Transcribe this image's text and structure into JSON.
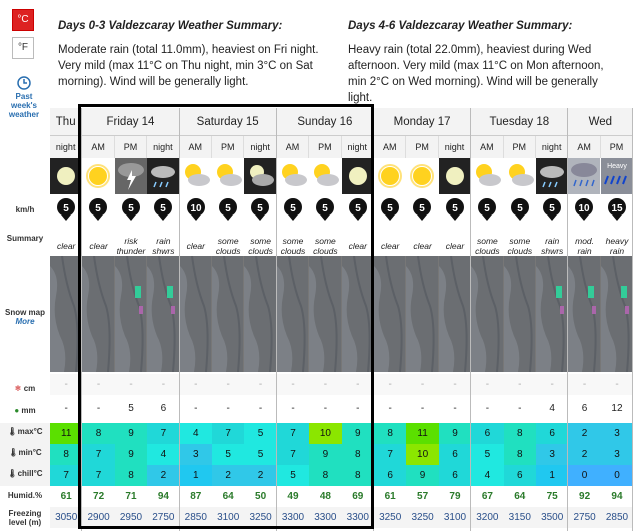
{
  "units": {
    "celsius": "°C",
    "fahrenheit": "°F"
  },
  "past_link": "Past week's weather",
  "summary_0_3": {
    "title": "Days 0-3 Valdezcaray Weather Summary:",
    "text": "Moderate rain (total 11.0mm), heaviest on Fri night. Very mild (max 11°C on Thu night, min 3°C on Sat morning). Wind will be generally light."
  },
  "summary_4_6": {
    "title": "Days 4-6 Valdezcaray Weather Summary:",
    "text": "Heavy rain (total 22.0mm), heaviest during Wed afternoon. Very mild (max 11°C on Mon afternoon, min 2°C on Wed morning). Wind will be generally light."
  },
  "row_labels": {
    "wind": "km/h",
    "summary": "Summary",
    "snowmap": "Snow map",
    "more": "More",
    "snow": "cm",
    "rain": "mm",
    "max": "max°C",
    "min": "min°C",
    "chill": "chill°C",
    "humid": "Humid.%",
    "freezing": "Freezing level (m)"
  },
  "days": [
    {
      "name": "Thu",
      "periods": [
        "night"
      ]
    },
    {
      "name": "Friday 14",
      "periods": [
        "AM",
        "PM",
        "night"
      ]
    },
    {
      "name": "Saturday 15",
      "periods": [
        "AM",
        "PM",
        "night"
      ]
    },
    {
      "name": "Sunday 16",
      "periods": [
        "AM",
        "PM",
        "night"
      ]
    },
    {
      "name": "Monday 17",
      "periods": [
        "AM",
        "PM",
        "night"
      ]
    },
    {
      "name": "Tuesday 18",
      "periods": [
        "AM",
        "PM",
        "night"
      ]
    },
    {
      "name": "Wed",
      "periods": [
        "AM",
        "PM"
      ]
    }
  ],
  "columns": [
    {
      "icon": "moon-clear-icon",
      "wind": "5",
      "summary": "clear",
      "snow": "-",
      "rain": "-",
      "max": "11",
      "min": "8",
      "chill": "7",
      "humid": "61",
      "freezing": "3050"
    },
    {
      "icon": "sun-icon",
      "wind": "5",
      "summary": "clear",
      "snow": "-",
      "rain": "-",
      "max": "8",
      "min": "7",
      "chill": "7",
      "humid": "72",
      "freezing": "2900"
    },
    {
      "icon": "thunder-icon",
      "wind": "5",
      "summary": "risk thunder",
      "snow": "-",
      "rain": "5",
      "max": "9",
      "min": "9",
      "chill": "8",
      "humid": "71",
      "freezing": "2950"
    },
    {
      "icon": "rain-night-icon",
      "wind": "5",
      "summary": "rain shwrs",
      "snow": "-",
      "rain": "6",
      "max": "7",
      "min": "4",
      "chill": "2",
      "humid": "94",
      "freezing": "2750"
    },
    {
      "icon": "cloudy-sun-icon",
      "wind": "10",
      "summary": "clear",
      "snow": "-",
      "rain": "-",
      "max": "4",
      "min": "3",
      "chill": "1",
      "humid": "87",
      "freezing": "2850"
    },
    {
      "icon": "cloudy-sun-icon",
      "wind": "5",
      "summary": "some clouds",
      "snow": "-",
      "rain": "-",
      "max": "7",
      "min": "5",
      "chill": "2",
      "humid": "64",
      "freezing": "3100"
    },
    {
      "icon": "cloudy-night-icon",
      "wind": "5",
      "summary": "some clouds",
      "snow": "-",
      "rain": "-",
      "max": "5",
      "min": "5",
      "chill": "2",
      "humid": "50",
      "freezing": "3250"
    },
    {
      "icon": "cloudy-sun-icon",
      "wind": "5",
      "summary": "some clouds",
      "snow": "-",
      "rain": "-",
      "max": "7",
      "min": "7",
      "chill": "5",
      "humid": "49",
      "freezing": "3300"
    },
    {
      "icon": "cloudy-sun-icon",
      "wind": "5",
      "summary": "some clouds",
      "snow": "-",
      "rain": "-",
      "max": "10",
      "min": "9",
      "chill": "8",
      "humid": "48",
      "freezing": "3300"
    },
    {
      "icon": "moon-clear-icon",
      "wind": "5",
      "summary": "clear",
      "snow": "-",
      "rain": "-",
      "max": "9",
      "min": "8",
      "chill": "8",
      "humid": "69",
      "freezing": "3300"
    },
    {
      "icon": "sun-icon",
      "wind": "5",
      "summary": "clear",
      "snow": "-",
      "rain": "-",
      "max": "8",
      "min": "7",
      "chill": "6",
      "humid": "61",
      "freezing": "3250"
    },
    {
      "icon": "sun-icon",
      "wind": "5",
      "summary": "clear",
      "snow": "-",
      "rain": "-",
      "max": "11",
      "min": "10",
      "chill": "9",
      "humid": "57",
      "freezing": "3250"
    },
    {
      "icon": "moon-clear-icon",
      "wind": "5",
      "summary": "clear",
      "snow": "-",
      "rain": "-",
      "max": "9",
      "min": "6",
      "chill": "6",
      "humid": "79",
      "freezing": "3100"
    },
    {
      "icon": "cloudy-sun-icon",
      "wind": "5",
      "summary": "some clouds",
      "snow": "-",
      "rain": "-",
      "max": "6",
      "min": "5",
      "chill": "4",
      "humid": "67",
      "freezing": "3200"
    },
    {
      "icon": "cloudy-sun-icon",
      "wind": "5",
      "summary": "some clouds",
      "snow": "-",
      "rain": "-",
      "max": "8",
      "min": "8",
      "chill": "6",
      "humid": "64",
      "freezing": "3150"
    },
    {
      "icon": "rain-night-icon",
      "wind": "5",
      "summary": "rain shwrs",
      "snow": "-",
      "rain": "4",
      "max": "6",
      "min": "3",
      "chill": "1",
      "humid": "75",
      "freezing": "3500"
    },
    {
      "icon": "mod-rain-icon",
      "wind": "10",
      "summary": "mod. rain",
      "snow": "-",
      "rain": "6",
      "max": "2",
      "min": "2",
      "chill": "0",
      "humid": "92",
      "freezing": "2750"
    },
    {
      "icon": "heavy-rain-icon",
      "wind": "15",
      "summary": "heavy rain",
      "snow": "-",
      "rain": "12",
      "max": "3",
      "min": "3",
      "chill": "0",
      "humid": "94",
      "freezing": "2850"
    }
  ],
  "heavy_label": "Heavy"
}
